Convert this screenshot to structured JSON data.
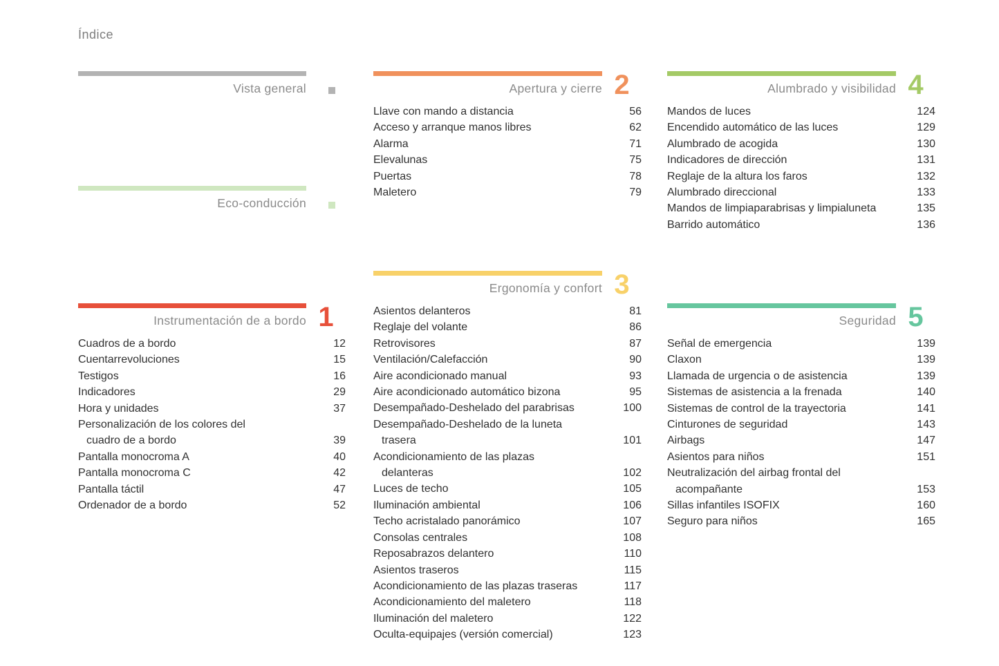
{
  "page": {
    "title": "Índice"
  },
  "sections": [
    {
      "key": "vista-general",
      "title": "Vista general",
      "color": "#b3b3b3",
      "number": null,
      "items": []
    },
    {
      "key": "eco-conduccion",
      "title": "Eco-conducción",
      "color": "#cfe7c0",
      "number": null,
      "items": []
    },
    {
      "key": "instrumentacion-de-a-bordo",
      "title": "Instrumentación de a bordo",
      "color": "#e7503a",
      "number": "1",
      "items": [
        {
          "label": "Cuadros de a bordo",
          "page": "12"
        },
        {
          "label": "Cuentarrevoluciones",
          "page": "15"
        },
        {
          "label": "Testigos",
          "page": "16"
        },
        {
          "label": "Indicadores",
          "page": "29"
        },
        {
          "label": "Hora y unidades",
          "page": "37"
        },
        {
          "label": "Personalización de los colores del\ncuadro de a bordo",
          "page": "39"
        },
        {
          "label": "Pantalla monocroma A",
          "page": "40"
        },
        {
          "label": "Pantalla monocroma C",
          "page": "42"
        },
        {
          "label": "Pantalla táctil",
          "page": "47"
        },
        {
          "label": "Ordenador de a bordo",
          "page": "52"
        }
      ]
    },
    {
      "key": "apertura-y-cierre",
      "title": "Apertura y cierre",
      "color": "#f0915c",
      "number": "2",
      "items": [
        {
          "label": "Llave con mando a distancia",
          "page": "56"
        },
        {
          "label": "Acceso y arranque manos libres",
          "page": "62"
        },
        {
          "label": "Alarma",
          "page": "71"
        },
        {
          "label": "Elevalunas",
          "page": "75"
        },
        {
          "label": "Puertas",
          "page": "78"
        },
        {
          "label": "Maletero",
          "page": "79"
        }
      ]
    },
    {
      "key": "ergonomia-y-confort",
      "title": "Ergonomía y confort",
      "color": "#f8d169",
      "number": "3",
      "items": [
        {
          "label": "Asientos delanteros",
          "page": "81"
        },
        {
          "label": "Reglaje del volante",
          "page": "86"
        },
        {
          "label": "Retrovisores",
          "page": "87"
        },
        {
          "label": "Ventilación/Calefacción",
          "page": "90"
        },
        {
          "label": "Aire acondicionado manual",
          "page": "93"
        },
        {
          "label": "Aire acondicionado automático bizona",
          "page": "95"
        },
        {
          "label": "Desempañado-Deshelado del parabrisas",
          "page": "100"
        },
        {
          "label": "Desempañado-Deshelado de la luneta\ntrasera",
          "page": "101"
        },
        {
          "label": "Acondicionamiento de las plazas\ndelanteras",
          "page": "102"
        },
        {
          "label": "Luces de techo",
          "page": "105"
        },
        {
          "label": "Iluminación ambiental",
          "page": "106"
        },
        {
          "label": "Techo acristalado panorámico",
          "page": "107"
        },
        {
          "label": "Consolas centrales",
          "page": "108"
        },
        {
          "label": "Reposabrazos delantero",
          "page": "110"
        },
        {
          "label": "Asientos traseros",
          "page": "115"
        },
        {
          "label": "Acondicionamiento de las plazas traseras",
          "page": "117"
        },
        {
          "label": "Acondicionamiento del maletero",
          "page": "118"
        },
        {
          "label": "Iluminación del maletero",
          "page": "122"
        },
        {
          "label": "Oculta-equipajes (versión comercial)",
          "page": "123"
        }
      ]
    },
    {
      "key": "alumbrado-y-visibilidad",
      "title": "Alumbrado y visibilidad",
      "color": "#a4ca66",
      "number": "4",
      "items": [
        {
          "label": "Mandos de luces",
          "page": "124"
        },
        {
          "label": "Encendido automático de las luces",
          "page": "129"
        },
        {
          "label": "Alumbrado de acogida",
          "page": "130"
        },
        {
          "label": "Indicadores de dirección",
          "page": "131"
        },
        {
          "label": "Reglaje de la altura los faros",
          "page": "132"
        },
        {
          "label": "Alumbrado direccional",
          "page": "133"
        },
        {
          "label": "Mandos de limpiaparabrisas y limpialuneta",
          "page": "135"
        },
        {
          "label": "Barrido automático",
          "page": "136"
        }
      ]
    },
    {
      "key": "seguridad",
      "title": "Seguridad",
      "color": "#66c69e",
      "number": "5",
      "items": [
        {
          "label": "Señal de emergencia",
          "page": "139"
        },
        {
          "label": "Claxon",
          "page": "139"
        },
        {
          "label": "Llamada de urgencia o de asistencia",
          "page": "139"
        },
        {
          "label": "Sistemas de asistencia a la frenada",
          "page": "140"
        },
        {
          "label": "Sistemas de control de la trayectoria",
          "page": "141"
        },
        {
          "label": "Cinturones de seguridad",
          "page": "143"
        },
        {
          "label": "Airbags",
          "page": "147"
        },
        {
          "label": "Asientos para niños",
          "page": "151"
        },
        {
          "label": "Neutralización del airbag frontal del\nacompañante",
          "page": "153"
        },
        {
          "label": "Sillas infantiles ISOFIX",
          "page": "160"
        },
        {
          "label": "Seguro para niños",
          "page": "165"
        }
      ]
    }
  ]
}
